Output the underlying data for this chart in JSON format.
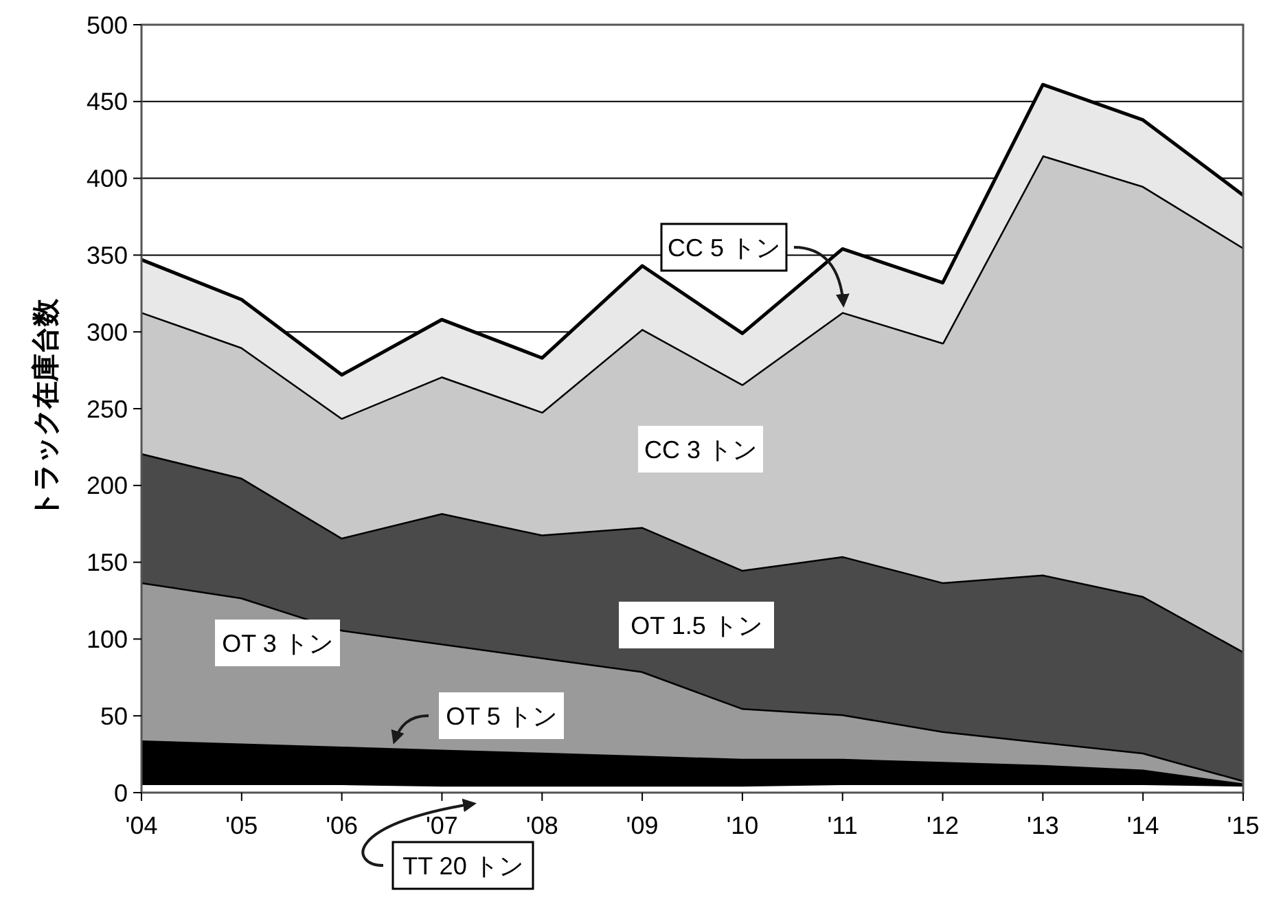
{
  "chart_data": {
    "type": "area",
    "stacked": true,
    "ylabel": "トラック在庫台数",
    "categories": [
      "'04",
      "'05",
      "'06",
      "'07",
      "'08",
      "'09",
      "'10",
      "'11",
      "'12",
      "'13",
      "'14",
      "'15"
    ],
    "series": [
      {
        "name": "TT 20 トン",
        "color": "#ffffff",
        "values": [
          6,
          6,
          6,
          5,
          5,
          5,
          5,
          6,
          6,
          6,
          6,
          5
        ]
      },
      {
        "name": "OT 5 トン",
        "color": "#000000",
        "values": [
          28,
          26,
          24,
          23,
          21,
          19,
          17,
          16,
          14,
          12,
          9,
          1
        ]
      },
      {
        "name": "OT 3 トン",
        "color": "#9a9a9a",
        "values": [
          103,
          95,
          76,
          69,
          62,
          55,
          33,
          29,
          20,
          15,
          11,
          2
        ]
      },
      {
        "name": "OT 1.5 トン",
        "color": "#4a4a4a",
        "values": [
          84,
          78,
          60,
          85,
          80,
          94,
          90,
          103,
          97,
          109,
          102,
          84
        ]
      },
      {
        "name": "CC 3 トン",
        "color": "#c8c8c8",
        "values": [
          92,
          85,
          78,
          89,
          80,
          129,
          121,
          159,
          156,
          273,
          267,
          263
        ]
      },
      {
        "name": "CC 5 トン",
        "color": "#e8e8e8",
        "values": [
          34,
          31,
          28,
          37,
          35,
          41,
          33,
          41,
          39,
          46,
          43,
          34
        ]
      }
    ],
    "ylim": [
      0,
      500
    ],
    "yticks": [
      0,
      50,
      100,
      150,
      200,
      250,
      300,
      350,
      400,
      450,
      500
    ],
    "grid": "y"
  }
}
